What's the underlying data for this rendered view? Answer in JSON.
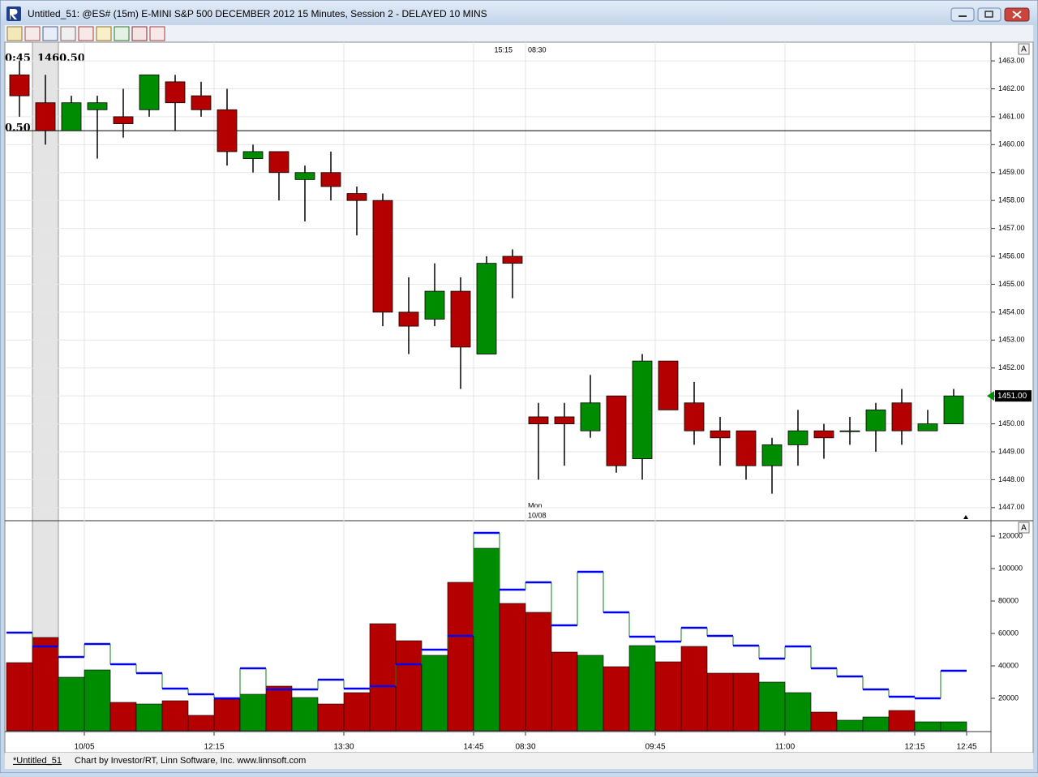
{
  "window": {
    "title": "Untitled_51: @ES# (15m) E-MINI S&P 500 DECEMBER 2012 15 Minutes, Session 2 - DELAYED 10 MINS"
  },
  "status_bar": {
    "tab": "*Untitled_51",
    "credit": "Chart by Investor/RT, Linn Software, Inc. www.linnsoft.com"
  },
  "chart_data": [
    {
      "type": "candlestick",
      "open": [
        1462.5,
        1461.5,
        1460.5,
        1461.25,
        1461.0,
        1461.25,
        1462.25,
        1461.75,
        1461.25,
        1459.5,
        1459.75,
        1458.75,
        1459.0,
        1458.25,
        1458.0,
        1454.0,
        1453.75,
        1454.75,
        1452.5,
        1456.0,
        1450.25,
        1450.25,
        1449.75,
        1451.0,
        1448.75,
        1452.25,
        1450.75,
        1449.75,
        1449.75,
        1448.5,
        1449.25,
        1449.75,
        1449.75,
        1449.75,
        1450.75,
        1449.75,
        1450.0
      ],
      "high": [
        1463.0,
        1462.5,
        1461.75,
        1461.75,
        1462.0,
        1462.5,
        1462.5,
        1462.25,
        1462.0,
        1460.0,
        1459.75,
        1459.25,
        1459.75,
        1458.5,
        1458.25,
        1455.25,
        1455.75,
        1455.25,
        1456.0,
        1456.25,
        1450.75,
        1450.75,
        1451.75,
        1451.0,
        1452.5,
        1452.25,
        1451.5,
        1450.25,
        1449.75,
        1449.5,
        1450.5,
        1450.0,
        1450.25,
        1450.75,
        1451.25,
        1450.5,
        1451.25
      ],
      "low": [
        1461.0,
        1460.0,
        1460.5,
        1459.5,
        1460.25,
        1461.0,
        1460.5,
        1461.0,
        1459.25,
        1459.0,
        1458.0,
        1457.25,
        1458.0,
        1456.75,
        1453.5,
        1452.5,
        1453.5,
        1451.25,
        1452.5,
        1454.5,
        1448.0,
        1448.5,
        1449.5,
        1448.25,
        1448.0,
        1450.5,
        1449.25,
        1448.5,
        1448.0,
        1447.5,
        1448.5,
        1448.75,
        1449.25,
        1449.0,
        1449.25,
        1449.75,
        1450.0
      ],
      "close": [
        1461.75,
        1460.5,
        1461.5,
        1461.5,
        1460.75,
        1462.5,
        1461.5,
        1461.25,
        1459.75,
        1459.75,
        1459.0,
        1459.0,
        1458.5,
        1458.0,
        1454.0,
        1453.5,
        1454.75,
        1452.75,
        1455.75,
        1455.75,
        1450.0,
        1450.0,
        1450.75,
        1448.5,
        1452.25,
        1450.5,
        1449.75,
        1449.5,
        1448.5,
        1449.25,
        1449.75,
        1449.5,
        1449.75,
        1450.5,
        1449.75,
        1450.0,
        1451.0
      ],
      "up_color": "#008c00",
      "down_color": "#b40000",
      "ylim": [
        1446.56,
        1463.67
      ],
      "yticks": [
        {
          "value": 1447,
          "label": "1447.00"
        },
        {
          "value": 1448,
          "label": "1448.00"
        },
        {
          "value": 1449,
          "label": "1449.00"
        },
        {
          "value": 1450,
          "label": "1450.00"
        },
        {
          "value": 1451,
          "label": "1451.00"
        },
        {
          "value": 1452,
          "label": "1452.00"
        },
        {
          "value": 1453,
          "label": "1453.00"
        },
        {
          "value": 1454,
          "label": "1454.00"
        },
        {
          "value": 1455,
          "label": "1455.00"
        },
        {
          "value": 1456,
          "label": "1456.00"
        },
        {
          "value": 1457,
          "label": "1457.00"
        },
        {
          "value": 1458,
          "label": "1458.00"
        },
        {
          "value": 1459,
          "label": "1459.00"
        },
        {
          "value": 1460,
          "label": "1460.00"
        },
        {
          "value": 1461,
          "label": "1461.00"
        },
        {
          "value": 1462,
          "label": "1462.00"
        },
        {
          "value": 1463,
          "label": "1463.00"
        }
      ],
      "grid": true,
      "last_price": {
        "value": 1451,
        "label": "1451.00"
      },
      "crosshair": {
        "value": 1460.5,
        "label": "1460.50"
      },
      "crosshair_time": "0:45",
      "crosshair_axis_label": "0.50",
      "session_end": "15:15",
      "session_start": "08:30",
      "session_day": "Mon",
      "session_date": "10/08",
      "panel_button": "A"
    },
    {
      "type": "bar",
      "categories": [
        null,
        null,
        null,
        "10/05",
        null,
        null,
        null,
        null,
        "12:15",
        null,
        null,
        null,
        null,
        "13:30",
        null,
        null,
        null,
        null,
        "14:45",
        null,
        "08:30",
        null,
        null,
        null,
        null,
        "09:45",
        null,
        null,
        null,
        null,
        "11:00",
        null,
        null,
        null,
        null,
        "12:15",
        null
      ],
      "x_end_label": "12:45",
      "values": [
        42000,
        57500,
        33000,
        37500,
        17500,
        16500,
        18500,
        9500,
        19500,
        22500,
        27500,
        20500,
        16500,
        23500,
        66000,
        55500,
        46500,
        91500,
        112500,
        78500,
        73000,
        48500,
        46500,
        39500,
        52500,
        42500,
        52000,
        35500,
        35500,
        30000,
        23500,
        11500,
        6500,
        8500,
        12500,
        5500,
        5500
      ],
      "average_values": [
        60500,
        52000,
        45500,
        53500,
        41000,
        35500,
        26000,
        22500,
        20000,
        38500,
        25500,
        25500,
        31500,
        26000,
        27500,
        41000,
        50000,
        58500,
        122000,
        87000,
        91500,
        65000,
        98000,
        73000,
        58000,
        55000,
        63500,
        58500,
        52500,
        44500,
        52000,
        38500,
        33500,
        25500,
        21000,
        20000,
        37000
      ],
      "average_color": "#0000ee",
      "ylim": [
        0,
        129000
      ],
      "yticks": [
        20000,
        40000,
        60000,
        80000,
        100000,
        120000
      ],
      "grid": false,
      "panel_button": "A"
    }
  ]
}
